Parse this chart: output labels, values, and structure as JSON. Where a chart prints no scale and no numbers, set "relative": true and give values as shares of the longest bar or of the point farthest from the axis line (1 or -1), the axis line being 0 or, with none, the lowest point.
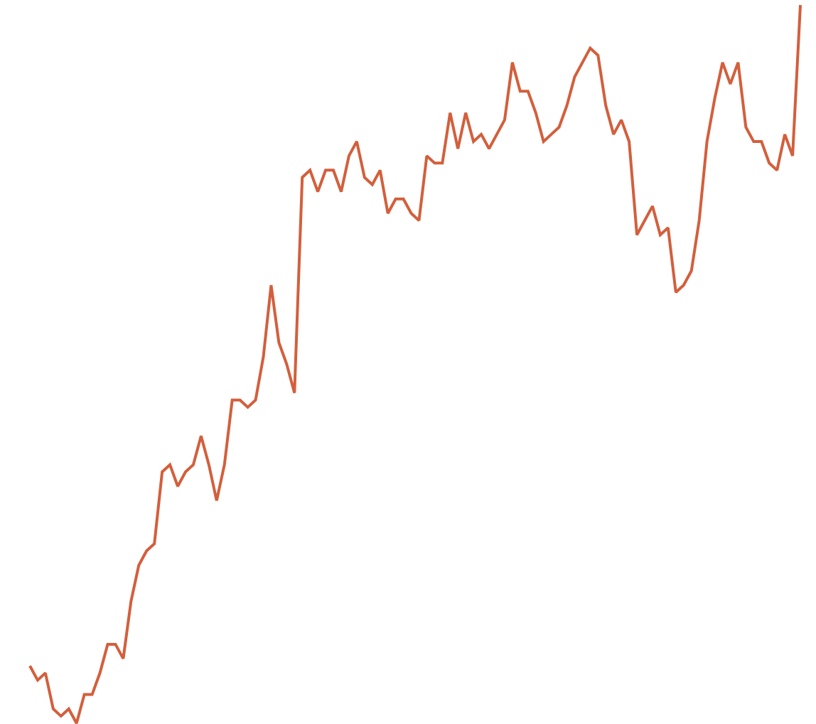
{
  "chart_data": {
    "type": "line",
    "relative": true,
    "legend": false,
    "marker": "none",
    "line_style": "solid",
    "categories": [
      null,
      null,
      null,
      null,
      null,
      null,
      null,
      null,
      null,
      null,
      null,
      null,
      null,
      null,
      null,
      null,
      null,
      null,
      null,
      null,
      null,
      null,
      null,
      null,
      null,
      null,
      null,
      null,
      null,
      null,
      null,
      null,
      null,
      null,
      null,
      null,
      null,
      null,
      null,
      null,
      null,
      null,
      null,
      null,
      null,
      null,
      null,
      null,
      null,
      null,
      null,
      null,
      null,
      null,
      null,
      null,
      null,
      null,
      null,
      null,
      null,
      null,
      null,
      null,
      null,
      null,
      null,
      null,
      null,
      null,
      null,
      null,
      null,
      null,
      null,
      null,
      null,
      null,
      null,
      null,
      null,
      null,
      null,
      null,
      null,
      null,
      null,
      null,
      null,
      null,
      null,
      null,
      null,
      null,
      null,
      null,
      null,
      null,
      null,
      null
    ],
    "series": [
      {
        "color": "#d35f3c",
        "values": [
          0.08,
          0.06,
          0.07,
          0.02,
          0.01,
          0.02,
          0.0,
          0.04,
          0.04,
          0.07,
          0.11,
          0.11,
          0.09,
          0.17,
          0.22,
          0.24,
          0.25,
          0.35,
          0.36,
          0.33,
          0.35,
          0.36,
          0.4,
          0.36,
          0.31,
          0.36,
          0.45,
          0.45,
          0.44,
          0.45,
          0.51,
          0.61,
          0.53,
          0.5,
          0.46,
          0.76,
          0.77,
          0.74,
          0.77,
          0.77,
          0.74,
          0.79,
          0.81,
          0.76,
          0.75,
          0.77,
          0.71,
          0.73,
          0.73,
          0.71,
          0.7,
          0.79,
          0.78,
          0.78,
          0.85,
          0.8,
          0.85,
          0.81,
          0.82,
          0.8,
          0.82,
          0.84,
          0.92,
          0.88,
          0.88,
          0.85,
          0.81,
          0.82,
          0.83,
          0.86,
          0.9,
          0.92,
          0.94,
          0.93,
          0.86,
          0.82,
          0.84,
          0.81,
          0.68,
          0.7,
          0.72,
          0.68,
          0.69,
          0.6,
          0.61,
          0.63,
          0.7,
          0.81,
          0.87,
          0.92,
          0.89,
          0.92,
          0.83,
          0.81,
          0.81,
          0.78,
          0.77,
          0.82,
          0.79,
          1
        ]
      }
    ]
  }
}
